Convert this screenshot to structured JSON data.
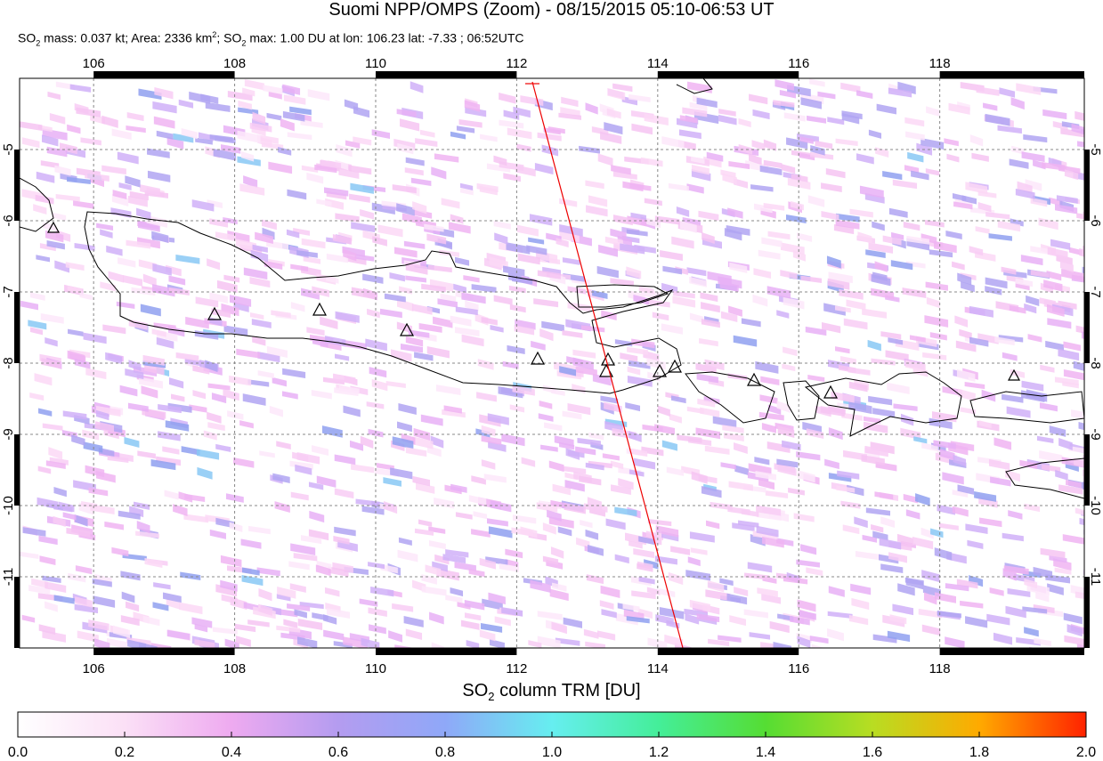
{
  "header": {
    "title": "Suomi NPP/OMPS (Zoom) - 08/15/2015 05:10-06:53 UT",
    "subtitle": [
      "SO",
      "2",
      " mass: 0.037 kt; Area: 2336 km",
      "2",
      "; SO",
      "2",
      " max: 1.00 DU at lon: 106.23 lat: -7.33 ; 06:52UTC"
    ]
  },
  "map": {
    "xlim": [
      104.95,
      120.05
    ],
    "ylim": [
      -12,
      -4
    ],
    "xticks": [
      106,
      108,
      110,
      112,
      114,
      116,
      118
    ],
    "yticks": [
      -5,
      -6,
      -7,
      -8,
      -9,
      -10,
      -11
    ]
  },
  "colorbar": {
    "label": [
      "SO",
      "2",
      " column TRM [DU]"
    ],
    "lim": [
      0,
      2
    ],
    "ticks": [
      {
        "value": 0,
        "label": "0.0"
      },
      0.2,
      0.4,
      0.6,
      0.8,
      {
        "value": 1,
        "label": "1.0"
      },
      1.2,
      1.4,
      1.6,
      1.8,
      {
        "value": 2,
        "label": "2.0"
      }
    ],
    "colors": [
      "#ffffff",
      "#fbe0f6",
      "#eeaaf0",
      "#b49cf0",
      "#8fa8f8",
      "#66eef0",
      "#44ee99",
      "#55dd33",
      "#b8dd22",
      "#ffaa00",
      "#ff2200"
    ]
  }
}
